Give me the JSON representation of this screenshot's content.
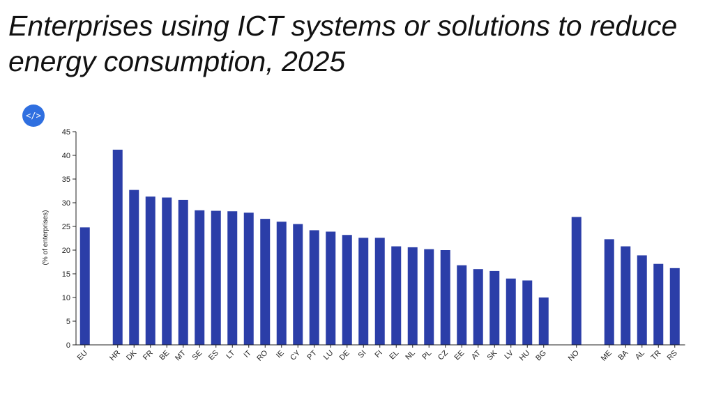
{
  "header": {
    "title": "Enterprises using ICT systems or solutions to reduce energy consumption, 2025"
  },
  "toolbar": {
    "embed_icon": "code-icon",
    "embed_glyph": "</>",
    "accent_color": "#2f6fe0"
  },
  "chart_data": {
    "type": "bar",
    "ylabel": "(% of enterprises)",
    "ylim": [
      0,
      45
    ],
    "yticks": [
      0,
      5,
      10,
      15,
      20,
      25,
      30,
      35,
      40,
      45
    ],
    "bar_color": "#2b3ea8",
    "grid": false,
    "legend": "none",
    "categories": [
      "EU",
      "",
      "HR",
      "DK",
      "FR",
      "BE",
      "MT",
      "SE",
      "ES",
      "LT",
      "IT",
      "RO",
      "IE",
      "CY",
      "PT",
      "LU",
      "DE",
      "SI",
      "FI",
      "EL",
      "NL",
      "PL",
      "CZ",
      "EE",
      "AT",
      "SK",
      "LV",
      "HU",
      "BG",
      "",
      "NO",
      "",
      "ME",
      "BA",
      "AL",
      "TR",
      "RS"
    ],
    "values": [
      24.8,
      null,
      41.2,
      32.7,
      31.3,
      31.1,
      30.6,
      28.4,
      28.3,
      28.2,
      27.9,
      26.6,
      26.0,
      25.5,
      24.2,
      23.9,
      23.2,
      22.6,
      22.6,
      20.8,
      20.6,
      20.2,
      20.0,
      16.8,
      16.0,
      15.6,
      14.0,
      13.6,
      10.0,
      null,
      27.0,
      null,
      22.3,
      20.8,
      18.9,
      17.1,
      16.2
    ]
  }
}
